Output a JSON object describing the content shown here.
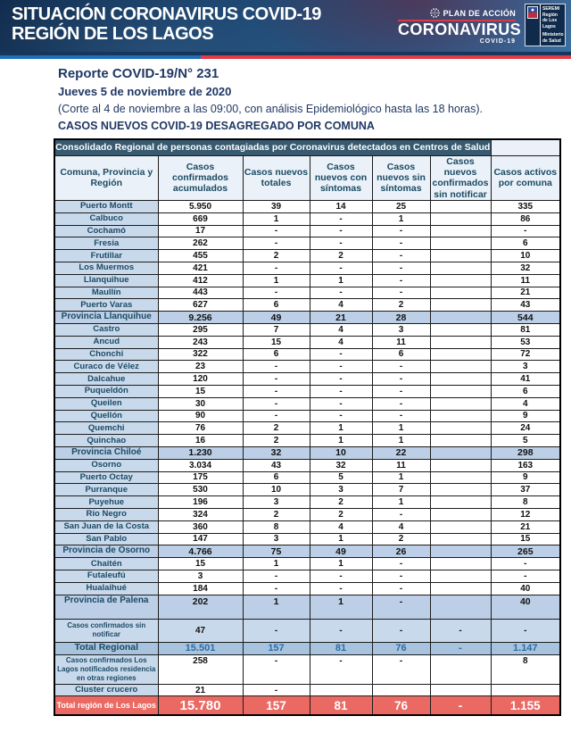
{
  "banner": {
    "title_line1": "SITUACIÓN CORONAVIRUS COVID-19",
    "title_line2": "REGIÓN DE LOS LAGOS",
    "plan_label": "PLAN DE ACCIÓN",
    "plan_brand": "CORONAVIRUS",
    "plan_sub": "COVID-19",
    "gov_line1": "SEREMI",
    "gov_line2": "Región de Los Lagos",
    "gov_line3": "Ministerio de Salud"
  },
  "report": {
    "title": "Reporte COVID-19/N° 231",
    "date": "Jueves 5 de noviembre de 2020",
    "note": "(Corte al 4 de noviembre a las 09:00, con análisis Epidemiológico hasta las 18 horas).",
    "subtitle": "CASOS NUEVOS COVID-19 DESAGREGADO POR COMUNA"
  },
  "table": {
    "banner_title": "Consolidado Regional de personas contagiadas por Coronavirus detectados en Centros de Salud",
    "columns": [
      "Comuna, Provincia y Región",
      "Casos confirmados acumulados",
      "Casos nuevos totales",
      "Casos nuevos con síntomas",
      "Casos nuevos sin síntomas",
      "Casos nuevos confirmados sin notificar",
      "Casos activos por comuna"
    ],
    "rows": [
      {
        "type": "comuna",
        "name": "Puerto Montt",
        "values": [
          "5.950",
          "39",
          "14",
          "25",
          "",
          "335"
        ]
      },
      {
        "type": "comuna",
        "name": "Calbuco",
        "values": [
          "669",
          "1",
          "-",
          "1",
          "",
          "86"
        ]
      },
      {
        "type": "comuna",
        "name": "Cochamó",
        "values": [
          "17",
          "-",
          "-",
          "-",
          "",
          "-"
        ]
      },
      {
        "type": "comuna",
        "name": "Fresia",
        "values": [
          "262",
          "-",
          "-",
          "-",
          "",
          "6"
        ]
      },
      {
        "type": "comuna",
        "name": "Frutillar",
        "values": [
          "455",
          "2",
          "2",
          "-",
          "",
          "10"
        ]
      },
      {
        "type": "comuna",
        "name": "Los Muermos",
        "values": [
          "421",
          "-",
          "-",
          "-",
          "",
          "32"
        ]
      },
      {
        "type": "comuna",
        "name": "Llanquihue",
        "values": [
          "412",
          "1",
          "1",
          "-",
          "",
          "11"
        ]
      },
      {
        "type": "comuna",
        "name": "Maullín",
        "values": [
          "443",
          "-",
          "-",
          "-",
          "",
          "21"
        ]
      },
      {
        "type": "comuna",
        "name": "Puerto Varas",
        "values": [
          "627",
          "6",
          "4",
          "2",
          "",
          "43"
        ]
      },
      {
        "type": "province",
        "name": "Provincia Llanquihue",
        "values": [
          "9.256",
          "49",
          "21",
          "28",
          "",
          "544"
        ]
      },
      {
        "type": "comuna",
        "name": "Castro",
        "values": [
          "295",
          "7",
          "4",
          "3",
          "",
          "81"
        ]
      },
      {
        "type": "comuna",
        "name": "Ancud",
        "values": [
          "243",
          "15",
          "4",
          "11",
          "",
          "53"
        ]
      },
      {
        "type": "comuna",
        "name": "Chonchi",
        "values": [
          "322",
          "6",
          "-",
          "6",
          "",
          "72"
        ]
      },
      {
        "type": "comuna",
        "name": "Curaco de Vélez",
        "values": [
          "23",
          "-",
          "-",
          "-",
          "",
          "3"
        ]
      },
      {
        "type": "comuna",
        "name": "Dalcahue",
        "values": [
          "120",
          "-",
          "-",
          "-",
          "",
          "41"
        ]
      },
      {
        "type": "comuna",
        "name": "Puqueldón",
        "values": [
          "15",
          "-",
          "-",
          "-",
          "",
          "6"
        ]
      },
      {
        "type": "comuna",
        "name": "Queilen",
        "values": [
          "30",
          "-",
          "-",
          "-",
          "",
          "4"
        ]
      },
      {
        "type": "comuna",
        "name": "Quellón",
        "values": [
          "90",
          "-",
          "-",
          "-",
          "",
          "9"
        ]
      },
      {
        "type": "comuna",
        "name": "Quemchi",
        "values": [
          "76",
          "2",
          "1",
          "1",
          "",
          "24"
        ]
      },
      {
        "type": "comuna",
        "name": "Quinchao",
        "values": [
          "16",
          "2",
          "1",
          "1",
          "",
          "5"
        ]
      },
      {
        "type": "province",
        "name": "Provincia Chiloé",
        "values": [
          "1.230",
          "32",
          "10",
          "22",
          "",
          "298"
        ]
      },
      {
        "type": "comuna",
        "name": "Osorno",
        "values": [
          "3.034",
          "43",
          "32",
          "11",
          "",
          "163"
        ]
      },
      {
        "type": "comuna",
        "name": "Puerto Octay",
        "values": [
          "175",
          "6",
          "5",
          "1",
          "",
          "9"
        ]
      },
      {
        "type": "comuna",
        "name": "Purranque",
        "values": [
          "530",
          "10",
          "3",
          "7",
          "",
          "37"
        ]
      },
      {
        "type": "comuna",
        "name": "Puyehue",
        "values": [
          "196",
          "3",
          "2",
          "1",
          "",
          "8"
        ]
      },
      {
        "type": "comuna",
        "name": "Río Negro",
        "values": [
          "324",
          "2",
          "2",
          "-",
          "",
          "12"
        ]
      },
      {
        "type": "comuna",
        "name": "San Juan de la Costa",
        "values": [
          "360",
          "8",
          "4",
          "4",
          "",
          "21"
        ]
      },
      {
        "type": "comuna",
        "name": "San Pablo",
        "values": [
          "147",
          "3",
          "1",
          "2",
          "",
          "15"
        ]
      },
      {
        "type": "province",
        "name": "Provincia de Osorno",
        "values": [
          "4.766",
          "75",
          "49",
          "26",
          "",
          "265"
        ]
      },
      {
        "type": "comuna",
        "name": "Chaitén",
        "values": [
          "15",
          "1",
          "1",
          "-",
          "",
          "-"
        ]
      },
      {
        "type": "comuna",
        "name": "Futaleufú",
        "values": [
          "3",
          "-",
          "-",
          "-",
          "",
          "-"
        ]
      },
      {
        "type": "comuna",
        "name": "Hualaihué",
        "values": [
          "184",
          "-",
          "-",
          "-",
          "",
          "40"
        ]
      },
      {
        "type": "province_tall",
        "name": "Provincia de Palena",
        "values": [
          "202",
          "1",
          "1",
          "-",
          "",
          "40"
        ]
      },
      {
        "type": "special",
        "name": "Casos confirmados sin notificar",
        "values": [
          "47",
          "-",
          "-",
          "-",
          "-",
          "-"
        ]
      },
      {
        "type": "total",
        "name": "Total Regional",
        "values": [
          "15.501",
          "157",
          "81",
          "76",
          "-",
          "1.147"
        ]
      },
      {
        "type": "note",
        "name": "Casos confirmados Los Lagos notificados residencia en otras regiones",
        "values": [
          "258",
          "-",
          "-",
          "-",
          "",
          "8"
        ]
      },
      {
        "type": "comuna",
        "name": "Cluster crucero",
        "values": [
          "21",
          "-",
          "",
          "",
          "",
          ""
        ]
      },
      {
        "type": "grand",
        "name": "Total región de Los Lagos",
        "values": [
          "15.780",
          "157",
          "81",
          "76",
          "-",
          "1.155"
        ]
      }
    ]
  },
  "colors": {
    "banner_navy": "#16365c",
    "strip_blue": "#1f6fb8",
    "strip_red": "#e23b46",
    "text_navy": "#1f3864",
    "table_title_bg": "#375a70",
    "header_cell_bg": "#eaf1f8",
    "label_blue": "#c9d9ec",
    "province_blue": "#bccfe6",
    "total_blue": "#a7c3de",
    "total_num_blue": "#2f6ca5",
    "grand_red": "#ea6a63"
  }
}
